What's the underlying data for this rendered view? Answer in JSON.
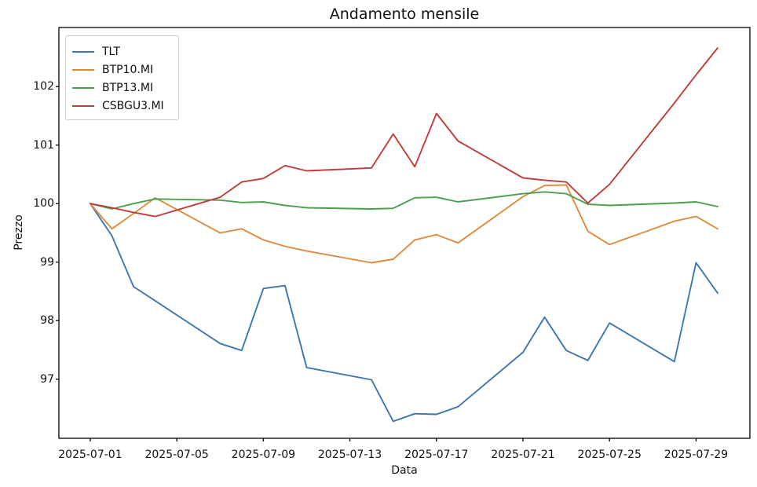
{
  "figure": {
    "title": "Andamento mensile",
    "xlabel": "Data",
    "ylabel": "Prezzo"
  },
  "chart_data": {
    "type": "line",
    "title": "Andamento mensile",
    "xlabel": "Data",
    "ylabel": "Prezzo",
    "x_dates": [
      "2025-07-01",
      "2025-07-02",
      "2025-07-03",
      "2025-07-04",
      "2025-07-07",
      "2025-07-08",
      "2025-07-09",
      "2025-07-10",
      "2025-07-11",
      "2025-07-14",
      "2025-07-15",
      "2025-07-16",
      "2025-07-17",
      "2025-07-18",
      "2025-07-21",
      "2025-07-22",
      "2025-07-23",
      "2025-07-24",
      "2025-07-25",
      "2025-07-28",
      "2025-07-29",
      "2025-07-30"
    ],
    "series": [
      {
        "name": "TLT",
        "color": "#3d76b0",
        "values": [
          100.0,
          99.45,
          98.58,
          98.34,
          97.61,
          97.49,
          98.55,
          98.6,
          97.2,
          96.99,
          96.28,
          96.41,
          96.4,
          96.53,
          97.46,
          98.06,
          97.49,
          97.32,
          97.96,
          97.3,
          98.99,
          98.47
        ]
      },
      {
        "name": "BTP10.MI",
        "color": "#e18a3d",
        "values": [
          100.0,
          99.57,
          99.83,
          100.1,
          99.5,
          99.57,
          99.38,
          99.27,
          99.19,
          98.99,
          99.05,
          99.38,
          99.47,
          99.33,
          100.12,
          100.31,
          100.32,
          99.53,
          99.3,
          99.7,
          99.78,
          99.57
        ]
      },
      {
        "name": "BTP13.MI",
        "color": "#4c9f4f",
        "values": [
          100.0,
          99.91,
          100.0,
          100.08,
          100.06,
          100.02,
          100.03,
          99.97,
          99.93,
          99.91,
          99.92,
          100.1,
          100.11,
          100.03,
          100.17,
          100.2,
          100.17,
          99.99,
          99.97,
          100.01,
          100.03,
          99.95
        ]
      },
      {
        "name": "CSBGU3.MI",
        "color": "#c03d39",
        "values": [
          100.0,
          99.93,
          99.85,
          99.78,
          100.11,
          100.37,
          100.43,
          100.65,
          100.56,
          100.61,
          101.19,
          100.63,
          101.54,
          101.07,
          100.44,
          100.4,
          100.37,
          100.01,
          100.33,
          101.72,
          102.2,
          102.66
        ]
      }
    ],
    "x_tick_labels": [
      "2025-07-01",
      "2025-07-05",
      "2025-07-09",
      "2025-07-13",
      "2025-07-17",
      "2025-07-21",
      "2025-07-25",
      "2025-07-29"
    ],
    "y_tick_labels": [
      97,
      98,
      99,
      100,
      101,
      102
    ],
    "xlim_day_of_month": [
      -0.45,
      31.49
    ],
    "ylim": [
      95.99,
      103.01
    ],
    "grid": false,
    "legend_position": "upper left"
  }
}
